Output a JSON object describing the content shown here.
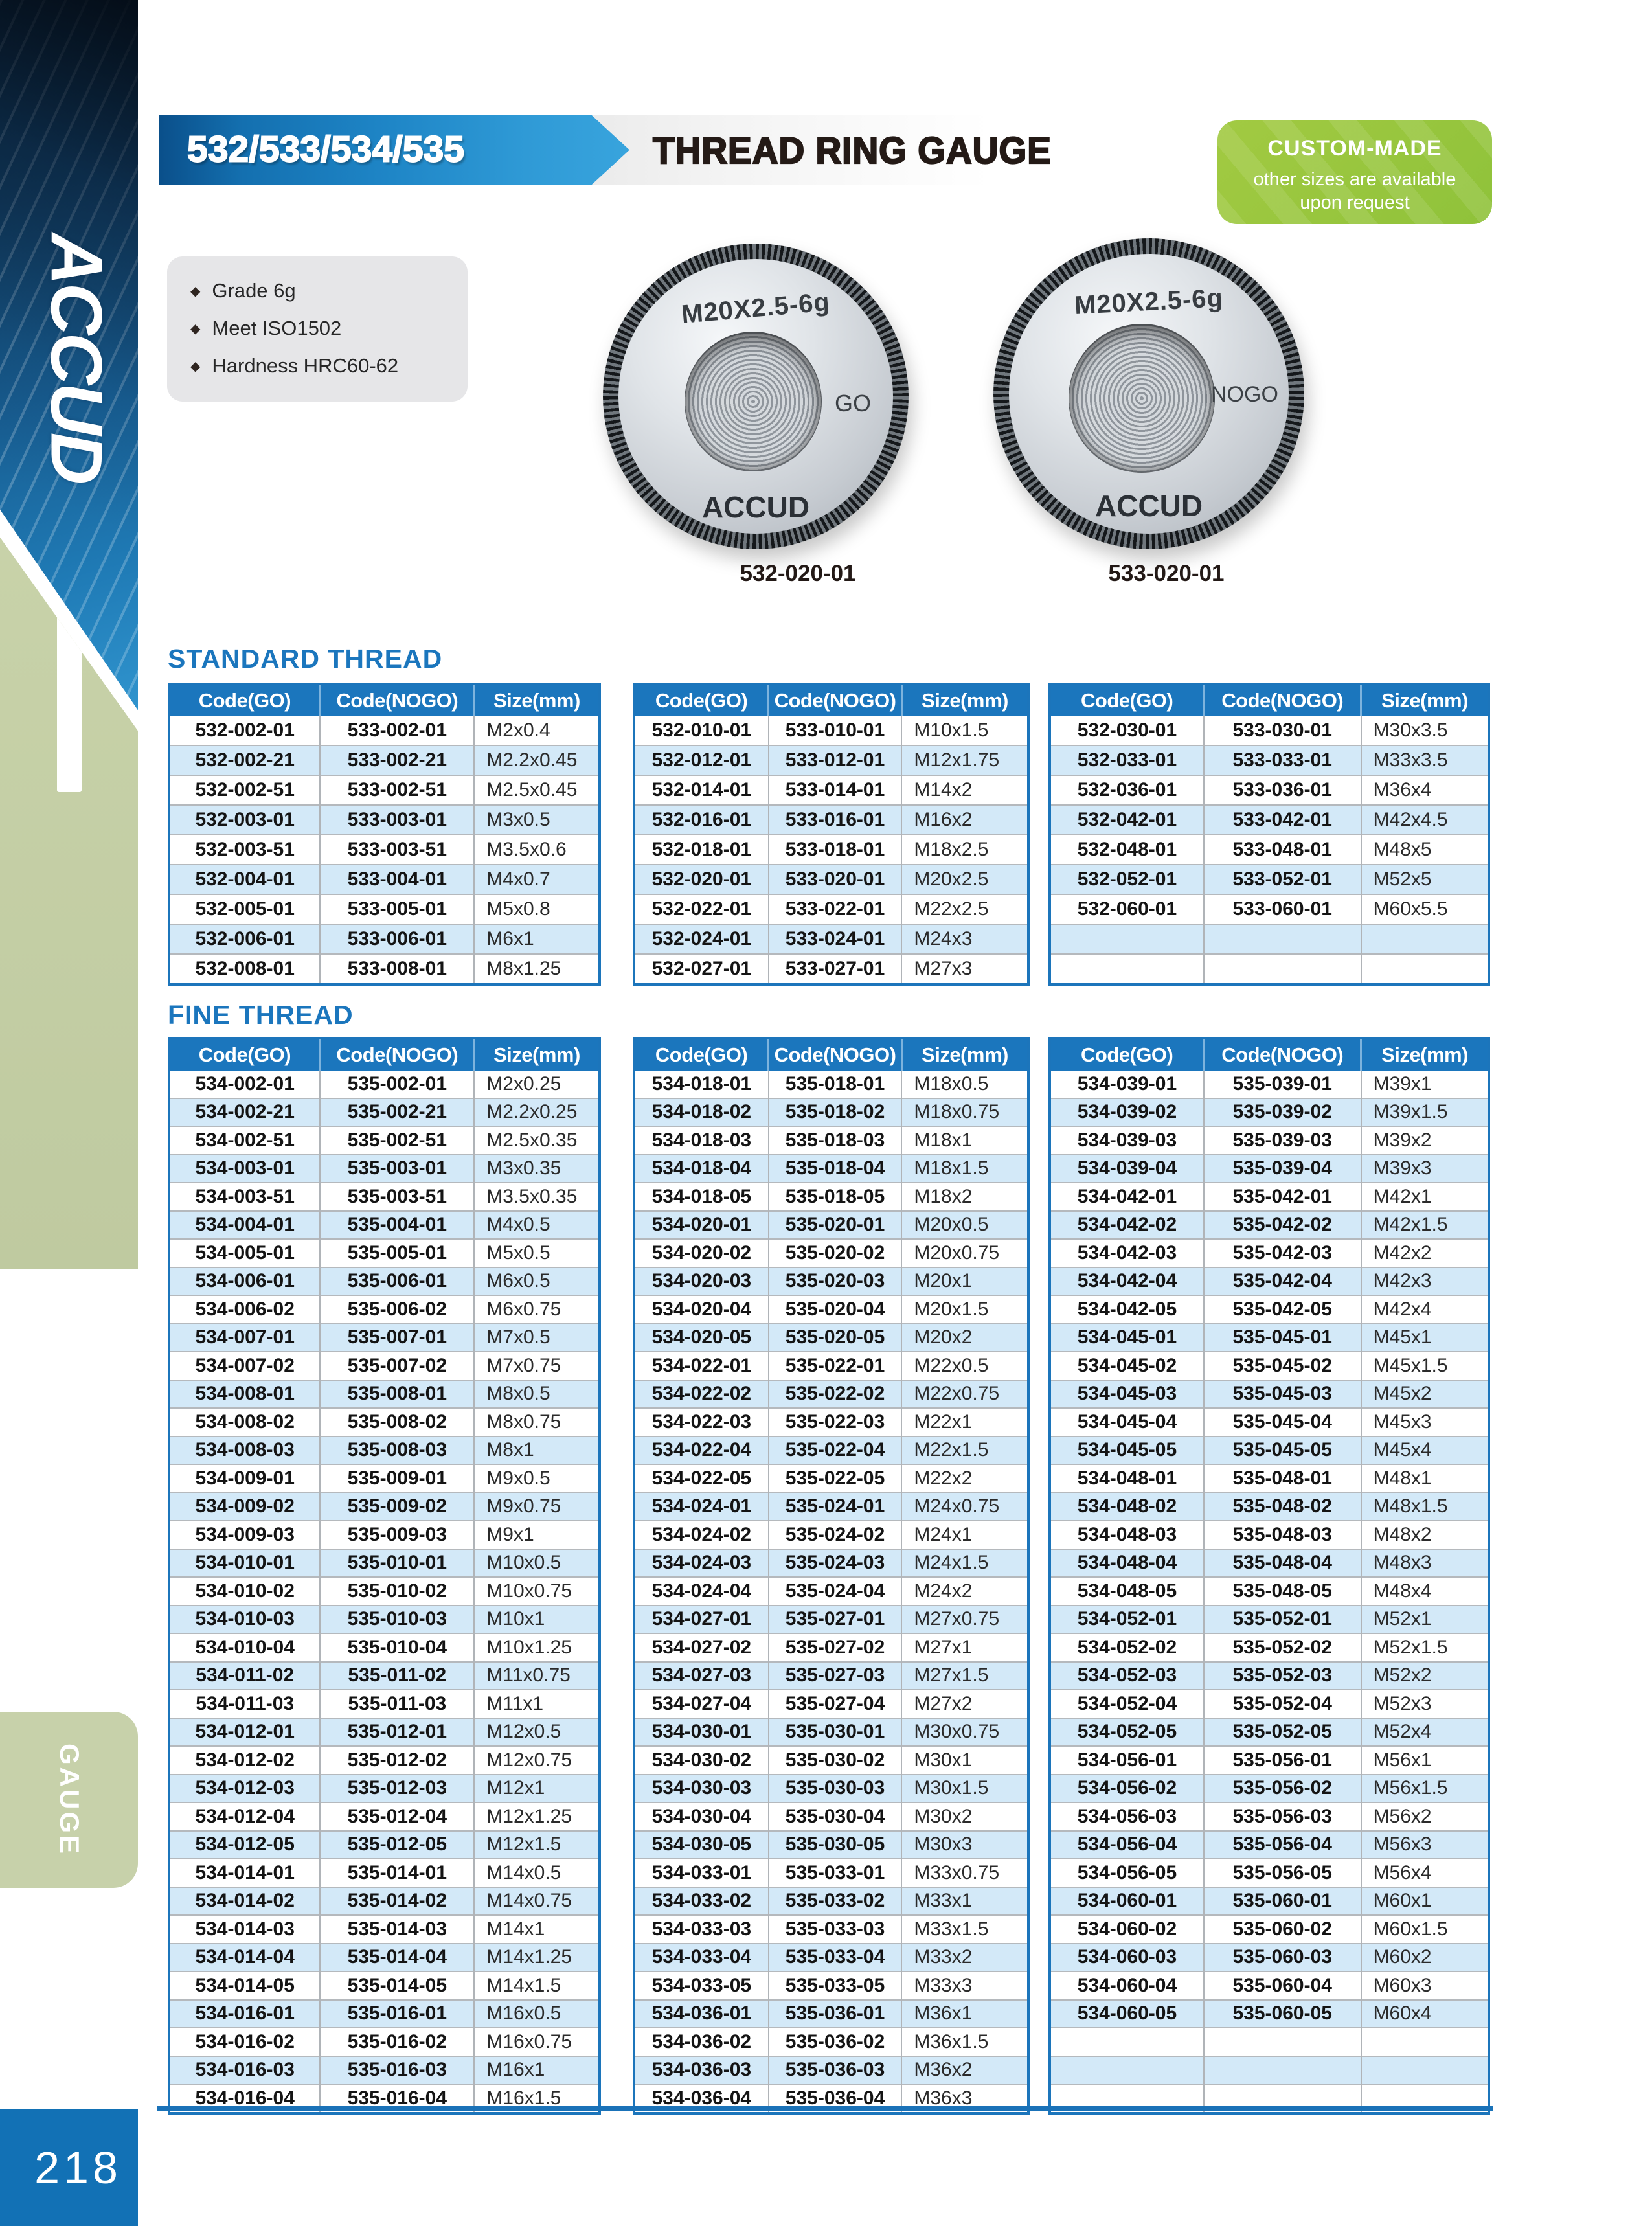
{
  "page": {
    "number": "218"
  },
  "sidebar": {
    "brand": "ACCUD",
    "tab": "GAUGE"
  },
  "header": {
    "model_range": "532/533/534/535",
    "title": "THREAD RING GAUGE",
    "badge": {
      "line1": "CUSTOM-MADE",
      "line2": "other sizes are available",
      "line3": "upon request"
    }
  },
  "features": {
    "items": [
      "Grade 6g",
      "Meet ISO1502",
      "Hardness HRC60-62"
    ]
  },
  "products": [
    {
      "ring_text": "M20X2.5-6g",
      "marking": "GO",
      "brand": "ACCUD",
      "caption": "532-020-01"
    },
    {
      "ring_text": "M20X2.5-6g",
      "marking": "NOGO",
      "brand": "ACCUD",
      "caption": "533-020-01"
    }
  ],
  "table_headers": [
    "Code(GO)",
    "Code(NOGO)",
    "Size(mm)"
  ],
  "standard": {
    "label": "STANDARD THREAD",
    "tables": [
      {
        "rows": [
          [
            "532-002-01",
            "533-002-01",
            "M2x0.4"
          ],
          [
            "532-002-21",
            "533-002-21",
            "M2.2x0.45"
          ],
          [
            "532-002-51",
            "533-002-51",
            "M2.5x0.45"
          ],
          [
            "532-003-01",
            "533-003-01",
            "M3x0.5"
          ],
          [
            "532-003-51",
            "533-003-51",
            "M3.5x0.6"
          ],
          [
            "532-004-01",
            "533-004-01",
            "M4x0.7"
          ],
          [
            "532-005-01",
            "533-005-01",
            "M5x0.8"
          ],
          [
            "532-006-01",
            "533-006-01",
            "M6x1"
          ],
          [
            "532-008-01",
            "533-008-01",
            "M8x1.25"
          ]
        ]
      },
      {
        "rows": [
          [
            "532-010-01",
            "533-010-01",
            "M10x1.5"
          ],
          [
            "532-012-01",
            "533-012-01",
            "M12x1.75"
          ],
          [
            "532-014-01",
            "533-014-01",
            "M14x2"
          ],
          [
            "532-016-01",
            "533-016-01",
            "M16x2"
          ],
          [
            "532-018-01",
            "533-018-01",
            "M18x2.5"
          ],
          [
            "532-020-01",
            "533-020-01",
            "M20x2.5"
          ],
          [
            "532-022-01",
            "533-022-01",
            "M22x2.5"
          ],
          [
            "532-024-01",
            "533-024-01",
            "M24x3"
          ],
          [
            "532-027-01",
            "533-027-01",
            "M27x3"
          ]
        ]
      },
      {
        "rows": [
          [
            "532-030-01",
            "533-030-01",
            "M30x3.5"
          ],
          [
            "532-033-01",
            "533-033-01",
            "M33x3.5"
          ],
          [
            "532-036-01",
            "533-036-01",
            "M36x4"
          ],
          [
            "532-042-01",
            "533-042-01",
            "M42x4.5"
          ],
          [
            "532-048-01",
            "533-048-01",
            "M48x5"
          ],
          [
            "532-052-01",
            "533-052-01",
            "M52x5"
          ],
          [
            "532-060-01",
            "533-060-01",
            "M60x5.5"
          ],
          [
            "",
            "",
            ""
          ],
          [
            "",
            "",
            ""
          ]
        ]
      }
    ]
  },
  "fine": {
    "label": "FINE THREAD",
    "tables": [
      {
        "rows": [
          [
            "534-002-01",
            "535-002-01",
            "M2x0.25"
          ],
          [
            "534-002-21",
            "535-002-21",
            "M2.2x0.25"
          ],
          [
            "534-002-51",
            "535-002-51",
            "M2.5x0.35"
          ],
          [
            "534-003-01",
            "535-003-01",
            "M3x0.35"
          ],
          [
            "534-003-51",
            "535-003-51",
            "M3.5x0.35"
          ],
          [
            "534-004-01",
            "535-004-01",
            "M4x0.5"
          ],
          [
            "534-005-01",
            "535-005-01",
            "M5x0.5"
          ],
          [
            "534-006-01",
            "535-006-01",
            "M6x0.5"
          ],
          [
            "534-006-02",
            "535-006-02",
            "M6x0.75"
          ],
          [
            "534-007-01",
            "535-007-01",
            "M7x0.5"
          ],
          [
            "534-007-02",
            "535-007-02",
            "M7x0.75"
          ],
          [
            "534-008-01",
            "535-008-01",
            "M8x0.5"
          ],
          [
            "534-008-02",
            "535-008-02",
            "M8x0.75"
          ],
          [
            "534-008-03",
            "535-008-03",
            "M8x1"
          ],
          [
            "534-009-01",
            "535-009-01",
            "M9x0.5"
          ],
          [
            "534-009-02",
            "535-009-02",
            "M9x0.75"
          ],
          [
            "534-009-03",
            "535-009-03",
            "M9x1"
          ],
          [
            "534-010-01",
            "535-010-01",
            "M10x0.5"
          ],
          [
            "534-010-02",
            "535-010-02",
            "M10x0.75"
          ],
          [
            "534-010-03",
            "535-010-03",
            "M10x1"
          ],
          [
            "534-010-04",
            "535-010-04",
            "M10x1.25"
          ],
          [
            "534-011-02",
            "535-011-02",
            "M11x0.75"
          ],
          [
            "534-011-03",
            "535-011-03",
            "M11x1"
          ],
          [
            "534-012-01",
            "535-012-01",
            "M12x0.5"
          ],
          [
            "534-012-02",
            "535-012-02",
            "M12x0.75"
          ],
          [
            "534-012-03",
            "535-012-03",
            "M12x1"
          ],
          [
            "534-012-04",
            "535-012-04",
            "M12x1.25"
          ],
          [
            "534-012-05",
            "535-012-05",
            "M12x1.5"
          ],
          [
            "534-014-01",
            "535-014-01",
            "M14x0.5"
          ],
          [
            "534-014-02",
            "535-014-02",
            "M14x0.75"
          ],
          [
            "534-014-03",
            "535-014-03",
            "M14x1"
          ],
          [
            "534-014-04",
            "535-014-04",
            "M14x1.25"
          ],
          [
            "534-014-05",
            "535-014-05",
            "M14x1.5"
          ],
          [
            "534-016-01",
            "535-016-01",
            "M16x0.5"
          ],
          [
            "534-016-02",
            "535-016-02",
            "M16x0.75"
          ],
          [
            "534-016-03",
            "535-016-03",
            "M16x1"
          ],
          [
            "534-016-04",
            "535-016-04",
            "M16x1.5"
          ]
        ]
      },
      {
        "rows": [
          [
            "534-018-01",
            "535-018-01",
            "M18x0.5"
          ],
          [
            "534-018-02",
            "535-018-02",
            "M18x0.75"
          ],
          [
            "534-018-03",
            "535-018-03",
            "M18x1"
          ],
          [
            "534-018-04",
            "535-018-04",
            "M18x1.5"
          ],
          [
            "534-018-05",
            "535-018-05",
            "M18x2"
          ],
          [
            "534-020-01",
            "535-020-01",
            "M20x0.5"
          ],
          [
            "534-020-02",
            "535-020-02",
            "M20x0.75"
          ],
          [
            "534-020-03",
            "535-020-03",
            "M20x1"
          ],
          [
            "534-020-04",
            "535-020-04",
            "M20x1.5"
          ],
          [
            "534-020-05",
            "535-020-05",
            "M20x2"
          ],
          [
            "534-022-01",
            "535-022-01",
            "M22x0.5"
          ],
          [
            "534-022-02",
            "535-022-02",
            "M22x0.75"
          ],
          [
            "534-022-03",
            "535-022-03",
            "M22x1"
          ],
          [
            "534-022-04",
            "535-022-04",
            "M22x1.5"
          ],
          [
            "534-022-05",
            "535-022-05",
            "M22x2"
          ],
          [
            "534-024-01",
            "535-024-01",
            "M24x0.75"
          ],
          [
            "534-024-02",
            "535-024-02",
            "M24x1"
          ],
          [
            "534-024-03",
            "535-024-03",
            "M24x1.5"
          ],
          [
            "534-024-04",
            "535-024-04",
            "M24x2"
          ],
          [
            "534-027-01",
            "535-027-01",
            "M27x0.75"
          ],
          [
            "534-027-02",
            "535-027-02",
            "M27x1"
          ],
          [
            "534-027-03",
            "535-027-03",
            "M27x1.5"
          ],
          [
            "534-027-04",
            "535-027-04",
            "M27x2"
          ],
          [
            "534-030-01",
            "535-030-01",
            "M30x0.75"
          ],
          [
            "534-030-02",
            "535-030-02",
            "M30x1"
          ],
          [
            "534-030-03",
            "535-030-03",
            "M30x1.5"
          ],
          [
            "534-030-04",
            "535-030-04",
            "M30x2"
          ],
          [
            "534-030-05",
            "535-030-05",
            "M30x3"
          ],
          [
            "534-033-01",
            "535-033-01",
            "M33x0.75"
          ],
          [
            "534-033-02",
            "535-033-02",
            "M33x1"
          ],
          [
            "534-033-03",
            "535-033-03",
            "M33x1.5"
          ],
          [
            "534-033-04",
            "535-033-04",
            "M33x2"
          ],
          [
            "534-033-05",
            "535-033-05",
            "M33x3"
          ],
          [
            "534-036-01",
            "535-036-01",
            "M36x1"
          ],
          [
            "534-036-02",
            "535-036-02",
            "M36x1.5"
          ],
          [
            "534-036-03",
            "535-036-03",
            "M36x2"
          ],
          [
            "534-036-04",
            "535-036-04",
            "M36x3"
          ]
        ]
      },
      {
        "rows": [
          [
            "534-039-01",
            "535-039-01",
            "M39x1"
          ],
          [
            "534-039-02",
            "535-039-02",
            "M39x1.5"
          ],
          [
            "534-039-03",
            "535-039-03",
            "M39x2"
          ],
          [
            "534-039-04",
            "535-039-04",
            "M39x3"
          ],
          [
            "534-042-01",
            "535-042-01",
            "M42x1"
          ],
          [
            "534-042-02",
            "535-042-02",
            "M42x1.5"
          ],
          [
            "534-042-03",
            "535-042-03",
            "M42x2"
          ],
          [
            "534-042-04",
            "535-042-04",
            "M42x3"
          ],
          [
            "534-042-05",
            "535-042-05",
            "M42x4"
          ],
          [
            "534-045-01",
            "535-045-01",
            "M45x1"
          ],
          [
            "534-045-02",
            "535-045-02",
            "M45x1.5"
          ],
          [
            "534-045-03",
            "535-045-03",
            "M45x2"
          ],
          [
            "534-045-04",
            "535-045-04",
            "M45x3"
          ],
          [
            "534-045-05",
            "535-045-05",
            "M45x4"
          ],
          [
            "534-048-01",
            "535-048-01",
            "M48x1"
          ],
          [
            "534-048-02",
            "535-048-02",
            "M48x1.5"
          ],
          [
            "534-048-03",
            "535-048-03",
            "M48x2"
          ],
          [
            "534-048-04",
            "535-048-04",
            "M48x3"
          ],
          [
            "534-048-05",
            "535-048-05",
            "M48x4"
          ],
          [
            "534-052-01",
            "535-052-01",
            "M52x1"
          ],
          [
            "534-052-02",
            "535-052-02",
            "M52x1.5"
          ],
          [
            "534-052-03",
            "535-052-03",
            "M52x2"
          ],
          [
            "534-052-04",
            "535-052-04",
            "M52x3"
          ],
          [
            "534-052-05",
            "535-052-05",
            "M52x4"
          ],
          [
            "534-056-01",
            "535-056-01",
            "M56x1"
          ],
          [
            "534-056-02",
            "535-056-02",
            "M56x1.5"
          ],
          [
            "534-056-03",
            "535-056-03",
            "M56x2"
          ],
          [
            "534-056-04",
            "535-056-04",
            "M56x3"
          ],
          [
            "534-056-05",
            "535-056-05",
            "M56x4"
          ],
          [
            "534-060-01",
            "535-060-01",
            "M60x1"
          ],
          [
            "534-060-02",
            "535-060-02",
            "M60x1.5"
          ],
          [
            "534-060-03",
            "535-060-03",
            "M60x2"
          ],
          [
            "534-060-04",
            "535-060-04",
            "M60x3"
          ],
          [
            "534-060-05",
            "535-060-05",
            "M60x4"
          ],
          [
            "",
            "",
            ""
          ],
          [
            "",
            "",
            ""
          ],
          [
            "",
            "",
            ""
          ]
        ]
      }
    ]
  }
}
